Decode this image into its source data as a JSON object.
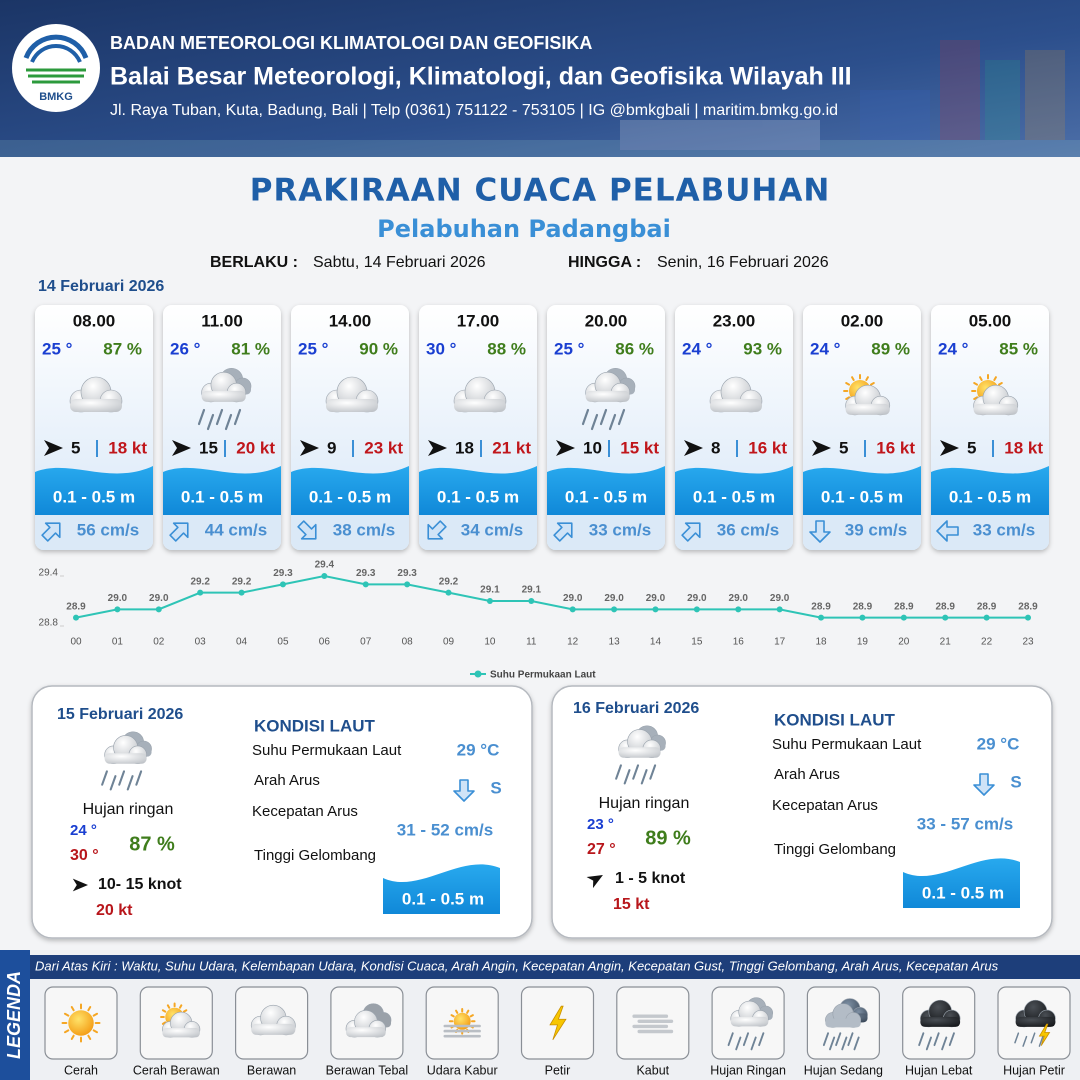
{
  "header": {
    "logo_text": "BMKG",
    "agency": "BADAN METEOROLOGI KLIMATOLOGI DAN GEOFISIKA",
    "office": "Balai Besar Meteorologi, Klimatologi, dan Geofisika Wilayah III",
    "contact": "Jl. Raya Tuban, Kuta, Badung, Bali | Telp (0361) 751122 - 753105 | IG @bmkgbali | maritim.bmkg.go.id"
  },
  "title": "PRAKIRAAN CUACA PELABUHAN",
  "subtitle": "Pelabuhan Padangbai",
  "validity": {
    "from_label": "BERLAKU :",
    "from": "Sabtu, 14 Februari 2026",
    "to_label": "HINGGA :",
    "to": "Senin, 16 Februari 2026"
  },
  "day1": {
    "date": "14 Februari 2026",
    "slots": [
      {
        "time": "08.00",
        "temperature": "25 °",
        "humidity": "87 %",
        "wind_speed": "5",
        "gust": "18 kt",
        "wave": "0.1 - 0.5 m",
        "current": "56 cm/s"
      },
      {
        "time": "11.00",
        "temperature": "26 °",
        "humidity": "81 %",
        "wind_speed": "15",
        "gust": "20 kt",
        "wave": "0.1 - 0.5 m",
        "current": "44 cm/s"
      },
      {
        "time": "14.00",
        "temperature": "25 °",
        "humidity": "90 %",
        "wind_speed": "9",
        "gust": "23 kt",
        "wave": "0.1 - 0.5 m",
        "current": "38 cm/s"
      },
      {
        "time": "17.00",
        "temperature": "30 °",
        "humidity": "88 %",
        "wind_speed": "18",
        "gust": "21 kt",
        "wave": "0.1 - 0.5 m",
        "current": "34 cm/s"
      },
      {
        "time": "20.00",
        "temperature": "25 °",
        "humidity": "86 %",
        "wind_speed": "10",
        "gust": "15 kt",
        "wave": "0.1 - 0.5 m",
        "current": "33 cm/s"
      },
      {
        "time": "23.00",
        "temperature": "24 °",
        "humidity": "93 %",
        "wind_speed": "8",
        "gust": "16 kt",
        "wave": "0.1 - 0.5 m",
        "current": "36 cm/s"
      },
      {
        "time": "02.00",
        "temperature": "24 °",
        "humidity": "89 %",
        "wind_speed": "5",
        "gust": "16 kt",
        "wave": "0.1 - 0.5 m",
        "current": "39 cm/s"
      },
      {
        "time": "05.00",
        "temperature": "24 °",
        "humidity": "85 %",
        "wind_speed": "5",
        "gust": "18 kt",
        "wave": "0.1 - 0.5 m",
        "current": "33 cm/s"
      }
    ]
  },
  "chart_data": {
    "type": "line",
    "categories": [
      "00",
      "01",
      "02",
      "03",
      "04",
      "05",
      "06",
      "07",
      "08",
      "09",
      "10",
      "11",
      "12",
      "13",
      "14",
      "15",
      "16",
      "17",
      "18",
      "19",
      "20",
      "21",
      "22",
      "23"
    ],
    "series": [
      {
        "name": "Suhu Permukaan Laut",
        "color": "#2ec4b6",
        "values": [
          28.9,
          29,
          29,
          29.2,
          29.2,
          29.3,
          29.4,
          29.3,
          29.3,
          29.2,
          29.1,
          29.1,
          29,
          29,
          29,
          29,
          29,
          29,
          28.9,
          28.9,
          28.9,
          28.9,
          28.9,
          28.9
        ],
        "value_labels": [
          "28.9",
          "29.0",
          "29.0",
          "29.2",
          "29.2",
          "29.3",
          "29.4",
          "29.3",
          "29.3",
          "29.2",
          "29.1",
          "29.1",
          "29.0",
          "29.0",
          "29.0",
          "29.0",
          "29.0",
          "29.0",
          "28.9",
          "28.9",
          "28.9",
          "28.9",
          "28.9",
          "28.9"
        ]
      }
    ],
    "ylim": [
      28.8,
      29.4
    ],
    "yticks": [
      28.8,
      29.4
    ],
    "grid": false,
    "legend": "bottom"
  },
  "forecasts": [
    {
      "date": "15 Februari 2026",
      "condition": "Hujan ringan",
      "temp_min": "24 °",
      "temp_max": "30 °",
      "humidity": "87 %",
      "wind": "10- 15 knot",
      "gust": "20 kt",
      "sea": {
        "title": "KONDISI LAUT",
        "sst_label": "Suhu Permukaan Laut",
        "sst": "29 °C",
        "current_dir_label": "Arah Arus",
        "current_dir": "S",
        "current_speed_label": "Kecepatan Arus",
        "current_speed": "31 - 52 cm/s",
        "wave_label": "Tinggi Gelombang",
        "wave": "0.1 - 0.5 m"
      }
    },
    {
      "date": "16 Februari 2026",
      "condition": "Hujan ringan",
      "temp_min": "23 °",
      "temp_max": "27 °",
      "humidity": "89 %",
      "wind": "1 - 5 knot",
      "gust": "15 kt",
      "sea": {
        "title": "KONDISI LAUT",
        "sst_label": "Suhu Permukaan Laut",
        "sst": "29 °C",
        "current_dir_label": "Arah Arus",
        "current_dir": "S",
        "current_speed_label": "Kecepatan Arus",
        "current_speed": "33 - 57 cm/s",
        "wave_label": "Tinggi Gelombang",
        "wave": "0.1 - 0.5 m"
      }
    }
  ],
  "legend": {
    "title": "LEGENDA",
    "note": "Dari Atas Kiri : Waktu, Suhu Udara, Kelembapan Udara, Kondisi Cuaca, Arah Angin, Kecepatan Angin, Kecepatan Gust, Tinggi Gelombang, Arah Arus, Kecepatan Arus",
    "items": [
      "Cerah",
      "Cerah Berawan",
      "Berawan",
      "Berawan Tebal",
      "Udara Kabur",
      "Petir",
      "Kabut",
      "Hujan Ringan",
      "Hujan Sedang",
      "Hujan Lebat",
      "Hujan Petir"
    ]
  }
}
